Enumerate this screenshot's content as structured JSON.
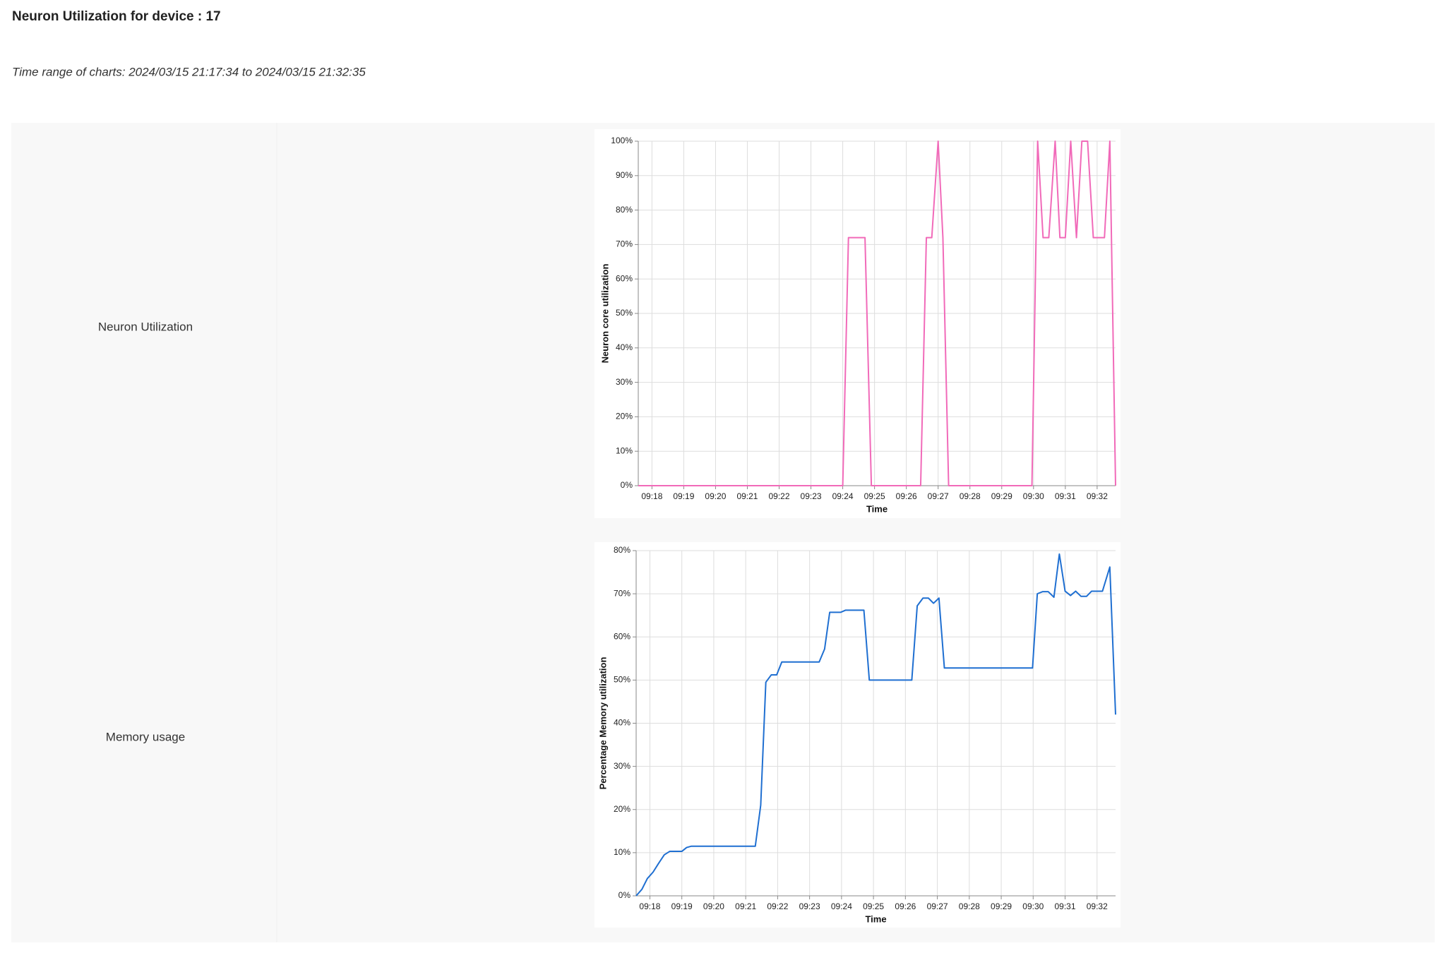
{
  "header": {
    "title": "Neuron Utilization for device : 17",
    "subtitle": "Time range of charts: 2024/03/15 21:17:34 to 2024/03/15 21:32:35"
  },
  "rows": [
    {
      "label": "Neuron Utilization"
    },
    {
      "label": "Memory usage"
    }
  ],
  "chart_data": [
    {
      "type": "line",
      "x_label": "Time",
      "y_label": "Neuron core utilization",
      "color": "#f16ab9",
      "grid": true,
      "x": [
        17.57,
        24.0,
        24.18,
        24.7,
        24.9,
        26.45,
        26.63,
        26.8,
        27.0,
        27.15,
        27.33,
        29.95,
        30.13,
        30.3,
        30.48,
        30.68,
        30.83,
        31.0,
        31.17,
        31.35,
        31.52,
        31.7,
        31.88,
        32.23,
        32.4,
        32.58
      ],
      "values": [
        0,
        0,
        72,
        72,
        0,
        0,
        72,
        72,
        100,
        72,
        0,
        0,
        100,
        72,
        72,
        100,
        72,
        72,
        100,
        72,
        100,
        100,
        72,
        72,
        100,
        0
      ],
      "xlim": [
        17.57,
        32.58
      ],
      "xticks": [
        {
          "value": 18,
          "label": "09:18"
        },
        {
          "value": 19,
          "label": "09:19"
        },
        {
          "value": 20,
          "label": "09:20"
        },
        {
          "value": 21,
          "label": "09:21"
        },
        {
          "value": 22,
          "label": "09:22"
        },
        {
          "value": 23,
          "label": "09:23"
        },
        {
          "value": 24,
          "label": "09:24"
        },
        {
          "value": 25,
          "label": "09:25"
        },
        {
          "value": 26,
          "label": "09:26"
        },
        {
          "value": 27,
          "label": "09:27"
        },
        {
          "value": 28,
          "label": "09:28"
        },
        {
          "value": 29,
          "label": "09:29"
        },
        {
          "value": 30,
          "label": "09:30"
        },
        {
          "value": 31,
          "label": "09:31"
        },
        {
          "value": 32,
          "label": "09:32"
        }
      ],
      "ylim": [
        0,
        100
      ],
      "yticks": [
        {
          "value": 0,
          "label": "0%"
        },
        {
          "value": 10,
          "label": "10%"
        },
        {
          "value": 20,
          "label": "20%"
        },
        {
          "value": 30,
          "label": "30%"
        },
        {
          "value": 40,
          "label": "40%"
        },
        {
          "value": 50,
          "label": "50%"
        },
        {
          "value": 60,
          "label": "60%"
        },
        {
          "value": 70,
          "label": "70%"
        },
        {
          "value": 80,
          "label": "80%"
        },
        {
          "value": 90,
          "label": "90%"
        },
        {
          "value": 100,
          "label": "100%"
        }
      ]
    },
    {
      "type": "line",
      "x_label": "Time",
      "y_label": "Percentage Memory utilization",
      "color": "#1f6fd1",
      "grid": true,
      "x": [
        17.57,
        17.75,
        17.92,
        18.1,
        18.27,
        18.45,
        18.62,
        19.0,
        19.15,
        19.3,
        21.3,
        21.47,
        21.63,
        21.8,
        21.97,
        22.13,
        23.3,
        23.47,
        23.63,
        23.97,
        24.13,
        24.7,
        24.87,
        26.2,
        26.37,
        26.55,
        26.72,
        26.88,
        27.05,
        27.22,
        29.98,
        30.13,
        30.3,
        30.47,
        30.65,
        30.82,
        31.0,
        31.17,
        31.33,
        31.5,
        31.67,
        31.83,
        32.17,
        32.4,
        32.58
      ],
      "values": [
        0,
        1.5,
        4,
        5.5,
        7.5,
        9.5,
        10.3,
        10.3,
        11.2,
        11.5,
        11.5,
        21,
        49.5,
        51.2,
        51.2,
        54.2,
        54.2,
        57.2,
        65.7,
        65.7,
        66.2,
        66.2,
        50,
        50,
        67.2,
        69,
        69,
        67.8,
        69,
        52.8,
        52.8,
        70,
        70.5,
        70.5,
        69.2,
        79.2,
        70.6,
        69.6,
        70.6,
        69.4,
        69.4,
        70.6,
        70.6,
        76.2,
        42
      ],
      "xlim": [
        17.57,
        32.58
      ],
      "xticks": [
        {
          "value": 18,
          "label": "09:18"
        },
        {
          "value": 19,
          "label": "09:19"
        },
        {
          "value": 20,
          "label": "09:20"
        },
        {
          "value": 21,
          "label": "09:21"
        },
        {
          "value": 22,
          "label": "09:22"
        },
        {
          "value": 23,
          "label": "09:23"
        },
        {
          "value": 24,
          "label": "09:24"
        },
        {
          "value": 25,
          "label": "09:25"
        },
        {
          "value": 26,
          "label": "09:26"
        },
        {
          "value": 27,
          "label": "09:27"
        },
        {
          "value": 28,
          "label": "09:28"
        },
        {
          "value": 29,
          "label": "09:29"
        },
        {
          "value": 30,
          "label": "09:30"
        },
        {
          "value": 31,
          "label": "09:31"
        },
        {
          "value": 32,
          "label": "09:32"
        }
      ],
      "ylim": [
        0,
        80
      ],
      "yticks": [
        {
          "value": 0,
          "label": "0%"
        },
        {
          "value": 10,
          "label": "10%"
        },
        {
          "value": 20,
          "label": "20%"
        },
        {
          "value": 30,
          "label": "30%"
        },
        {
          "value": 40,
          "label": "40%"
        },
        {
          "value": 50,
          "label": "50%"
        },
        {
          "value": 60,
          "label": "60%"
        },
        {
          "value": 70,
          "label": "70%"
        },
        {
          "value": 80,
          "label": "80%"
        }
      ]
    }
  ]
}
